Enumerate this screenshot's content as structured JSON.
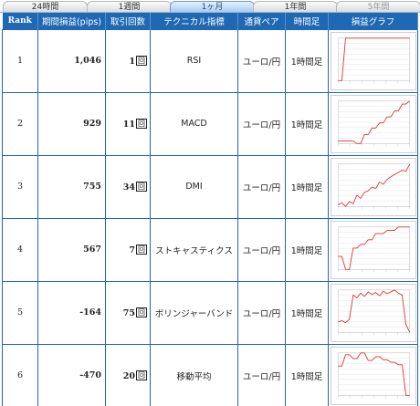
{
  "tabs": [
    {
      "label": "24時間",
      "state": "normal"
    },
    {
      "label": "1週間",
      "state": "normal"
    },
    {
      "label": "1ヶ月",
      "state": "active"
    },
    {
      "label": "1年間",
      "state": "normal"
    },
    {
      "label": "5年間",
      "state": "disabled"
    }
  ],
  "table": {
    "headers": {
      "rank": "Rank",
      "pips": "期間損益(pips)",
      "trades": "取引回数",
      "indicator": "テクニカル指標",
      "pair": "通貨ペア",
      "timeframe": "時間足",
      "graph": "損益グラフ"
    },
    "trade_unit": "回",
    "rows": [
      {
        "rank": "1",
        "pips": "1,046",
        "trades": "1",
        "indicator": "RSI",
        "pair": "ユーロ/円",
        "timeframe": "1時間足",
        "graph": [
          0,
          0,
          1046,
          1046,
          1046,
          1046,
          1046,
          1046,
          1046,
          1046,
          1046,
          1046,
          1046,
          1046,
          1046,
          1046,
          1046,
          1046,
          1046,
          1046
        ]
      },
      {
        "rank": "2",
        "pips": "929",
        "trades": "11",
        "indicator": "MACD",
        "pair": "ユーロ/円",
        "timeframe": "1時間足",
        "graph": [
          0,
          0,
          0,
          0,
          0,
          -60,
          -60,
          150,
          150,
          300,
          300,
          420,
          420,
          560,
          560,
          700,
          700,
          860,
          860,
          929
        ]
      },
      {
        "rank": "3",
        "pips": "755",
        "trades": "34",
        "indicator": "DMI",
        "pair": "ユーロ/円",
        "timeframe": "1時間足",
        "graph": [
          0,
          40,
          -30,
          60,
          20,
          180,
          120,
          230,
          260,
          330,
          300,
          420,
          380,
          470,
          520,
          560,
          600,
          640,
          620,
          755
        ]
      },
      {
        "rank": "4",
        "pips": "567",
        "trades": "7",
        "indicator": "ストキャスティクス",
        "pair": "ユーロ/円",
        "timeframe": "1時間足",
        "graph": [
          0,
          0,
          -250,
          -250,
          160,
          160,
          230,
          230,
          320,
          320,
          440,
          440,
          440,
          500,
          500,
          500,
          567,
          567,
          567,
          567
        ]
      },
      {
        "rank": "5",
        "pips": "-164",
        "trades": "75",
        "indicator": "ボリンジャーバンド",
        "pair": "ユーロ/円",
        "timeframe": "1時間足",
        "graph": [
          0,
          20,
          -10,
          40,
          420,
          380,
          450,
          400,
          470,
          430,
          460,
          410,
          480,
          440,
          470,
          500,
          450,
          420,
          -40,
          -164
        ]
      },
      {
        "rank": "6",
        "pips": "-470",
        "trades": "20",
        "indicator": "移動平均",
        "pair": "ユーロ/円",
        "timeframe": "1時間足",
        "graph": [
          0,
          0,
          180,
          180,
          120,
          120,
          210,
          210,
          90,
          90,
          150,
          150,
          100,
          100,
          60,
          60,
          20,
          20,
          -470,
          -470
        ]
      }
    ]
  },
  "colors": {
    "header_bg": "#1f68b4",
    "border": "#1f68b4",
    "graph_line": "#e0312d",
    "graph_grid": "#dcdcdc",
    "tab_active": "#a9cbef"
  }
}
